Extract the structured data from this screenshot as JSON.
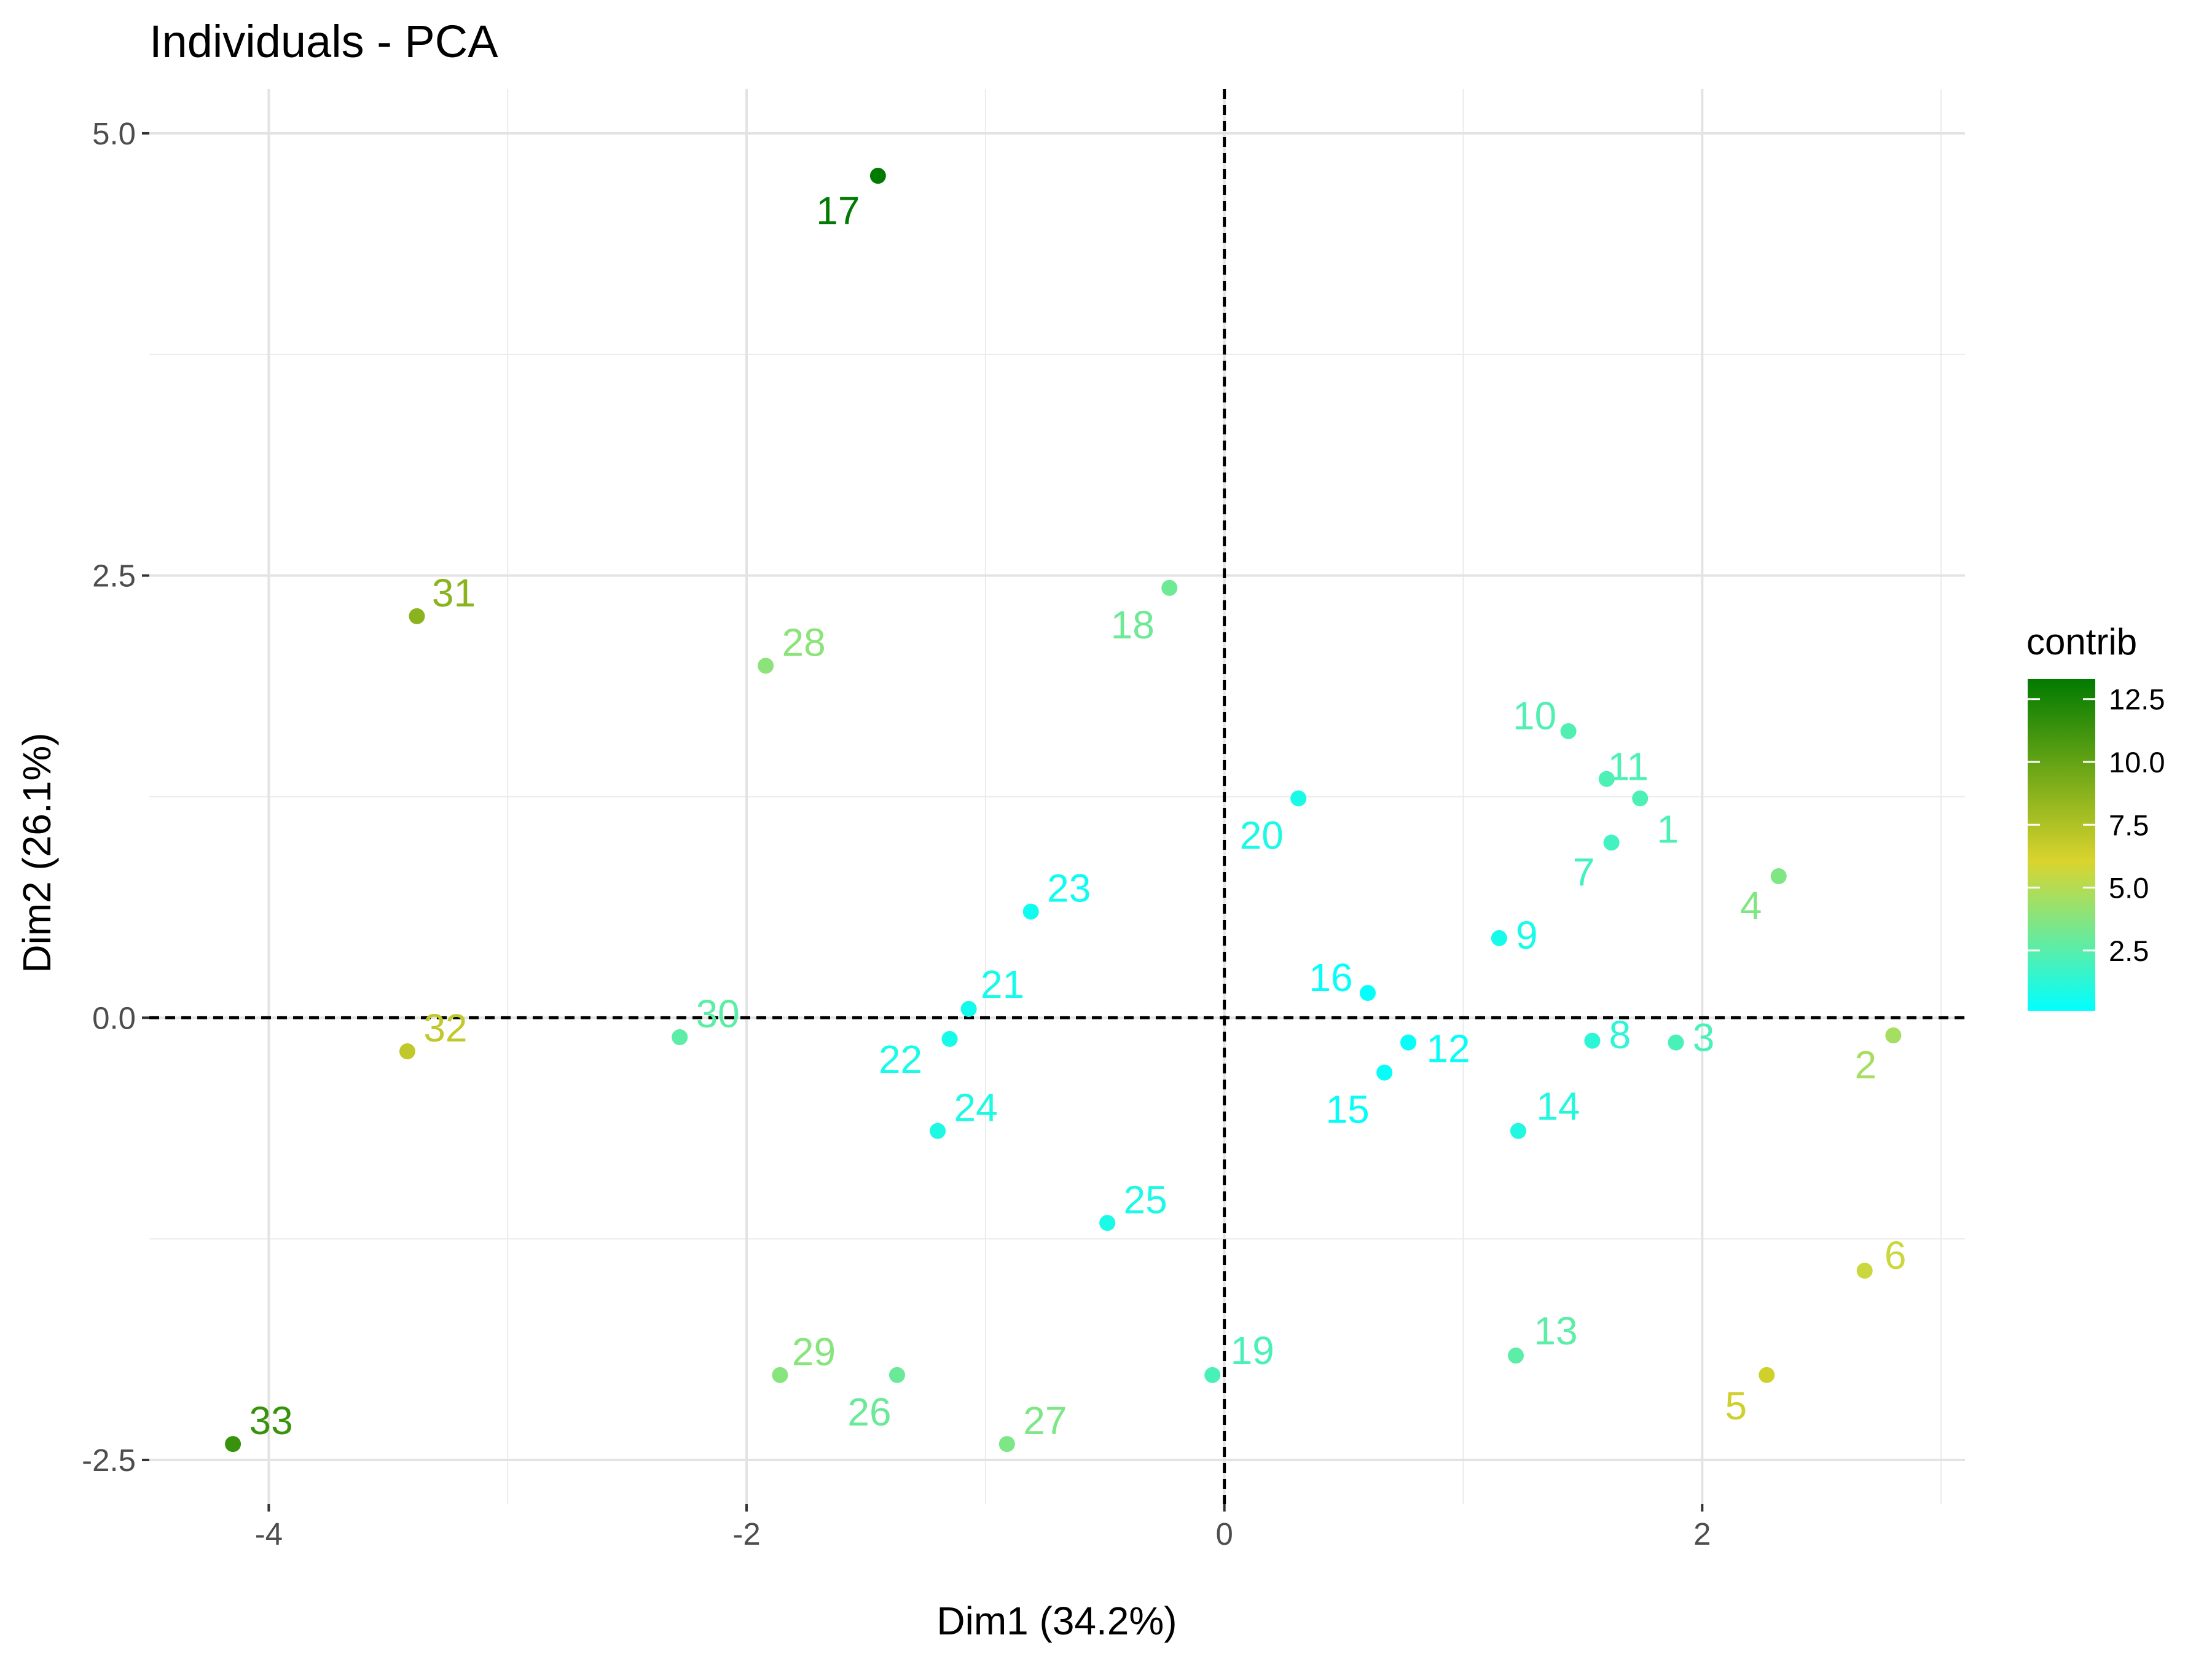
{
  "chart_data": {
    "type": "scatter",
    "title": "Individuals - PCA",
    "xlabel": "Dim1 (34.2%)",
    "ylabel": "Dim2 (26.1%)",
    "xlim": [
      -4.5,
      3.1
    ],
    "ylim": [
      -2.75,
      5.25
    ],
    "x_ticks": [
      -4,
      -2,
      0,
      2
    ],
    "x_tick_labels": [
      "-4",
      "-2",
      "0",
      "2"
    ],
    "y_ticks": [
      -2.5,
      0,
      2.5,
      5
    ],
    "y_tick_labels": [
      "-2.5",
      "0.0",
      "2.5",
      "5.0"
    ],
    "reference_lines": {
      "x": 0,
      "y": 0,
      "style": "dashed"
    },
    "grid": true,
    "legend": {
      "title": "contrib",
      "placement": "right",
      "type": "colorbar",
      "ticks": [
        2.5,
        5.0,
        7.5,
        10.0,
        12.5
      ],
      "tick_labels": [
        "2.5",
        "5.0",
        "7.5",
        "10.0",
        "12.5"
      ],
      "range": [
        0.1,
        13.3
      ],
      "colors": {
        "low": "#00FFFF",
        "mid": "#DAD42E",
        "high": "#007A00"
      }
    },
    "points": [
      {
        "label": "1",
        "x": 1.74,
        "y": 1.24,
        "contrib": 2.2
      },
      {
        "label": "2",
        "x": 2.8,
        "y": -0.1,
        "contrib": 4.6
      },
      {
        "label": "3",
        "x": 1.89,
        "y": -0.14,
        "contrib": 2.1
      },
      {
        "label": "4",
        "x": 2.32,
        "y": 0.8,
        "contrib": 3.6
      },
      {
        "label": "5",
        "x": 2.27,
        "y": -2.02,
        "contrib": 6.4
      },
      {
        "label": "6",
        "x": 2.68,
        "y": -1.43,
        "contrib": 5.6
      },
      {
        "label": "7",
        "x": 1.62,
        "y": 0.99,
        "contrib": 1.9
      },
      {
        "label": "8",
        "x": 1.54,
        "y": -0.13,
        "contrib": 1.3
      },
      {
        "label": "9",
        "x": 1.15,
        "y": 0.45,
        "contrib": 0.7
      },
      {
        "label": "10",
        "x": 1.44,
        "y": 1.62,
        "contrib": 2.3
      },
      {
        "label": "11",
        "x": 1.6,
        "y": 1.35,
        "contrib": 2.2
      },
      {
        "label": "12",
        "x": 0.77,
        "y": -0.14,
        "contrib": 0.3
      },
      {
        "label": "13",
        "x": 1.22,
        "y": -1.91,
        "contrib": 2.6
      },
      {
        "label": "14",
        "x": 1.23,
        "y": -0.64,
        "contrib": 1.0
      },
      {
        "label": "15",
        "x": 0.67,
        "y": -0.31,
        "contrib": 0.3
      },
      {
        "label": "16",
        "x": 0.6,
        "y": 0.14,
        "contrib": 0.2
      },
      {
        "label": "17",
        "x": -1.45,
        "y": 4.76,
        "contrib": 13.3
      },
      {
        "label": "18",
        "x": -0.23,
        "y": 2.43,
        "contrib": 3.1
      },
      {
        "label": "19",
        "x": -0.05,
        "y": -2.02,
        "contrib": 2.1
      },
      {
        "label": "20",
        "x": 0.31,
        "y": 1.24,
        "contrib": 0.8
      },
      {
        "label": "21",
        "x": -1.07,
        "y": 0.05,
        "contrib": 0.6
      },
      {
        "label": "22",
        "x": -1.15,
        "y": -0.12,
        "contrib": 0.7
      },
      {
        "label": "23",
        "x": -0.81,
        "y": 0.6,
        "contrib": 0.5
      },
      {
        "label": "24",
        "x": -1.2,
        "y": -0.64,
        "contrib": 0.9
      },
      {
        "label": "25",
        "x": -0.49,
        "y": -1.16,
        "contrib": 0.8
      },
      {
        "label": "26",
        "x": -1.37,
        "y": -2.02,
        "contrib": 3.0
      },
      {
        "label": "27",
        "x": -0.91,
        "y": -2.41,
        "contrib": 3.5
      },
      {
        "label": "28",
        "x": -1.92,
        "y": 1.99,
        "contrib": 3.9
      },
      {
        "label": "29",
        "x": -1.86,
        "y": -2.02,
        "contrib": 3.8
      },
      {
        "label": "30",
        "x": -2.28,
        "y": -0.11,
        "contrib": 2.6
      },
      {
        "label": "31",
        "x": -3.38,
        "y": 2.27,
        "contrib": 8.7
      },
      {
        "label": "32",
        "x": -3.42,
        "y": -0.19,
        "contrib": 6.9
      },
      {
        "label": "33",
        "x": -4.15,
        "y": -2.41,
        "contrib": 11.4
      }
    ]
  }
}
